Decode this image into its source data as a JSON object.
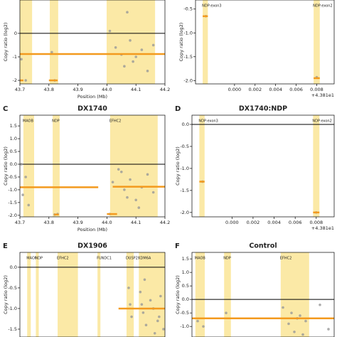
{
  "chart_data": [
    {
      "type": "scatter",
      "xlabel": "Position (Mb)",
      "ylabel": "Copy ratio (log2)",
      "xlim": [
        43.7,
        44.2
      ],
      "ylim": [
        -2.15,
        1.42
      ],
      "xticks": [
        43.7,
        43.8,
        43.9,
        {
          "value": 44.0,
          "label": "44.0"
        },
        44.1,
        44.2
      ],
      "yticks": [
        0,
        -1,
        -2
      ],
      "bands": [
        {
          "start": 43.7,
          "end": 43.742
        },
        {
          "start": 43.803,
          "end": 43.832
        },
        {
          "start": 43.999,
          "end": 44.166
        }
      ],
      "band_color": "#fbe9a6",
      "segments": [
        {
          "x": [
            43.7,
            44.2
          ],
          "y": -0.88
        },
        {
          "x": [
            43.7,
            43.712
          ],
          "y": -2.0
        },
        {
          "x": [
            43.8,
            43.83
          ],
          "y": -2.0
        }
      ],
      "segment_color": "#f39a1e",
      "point_color": "#999999",
      "points": {
        "x": [
          43.705,
          43.72,
          43.81,
          43.82,
          44.01,
          44.03,
          44.05,
          44.06,
          44.08,
          44.1,
          44.12,
          44.14,
          44.16,
          44.07,
          44.09
        ],
        "y": [
          -1.1,
          -2.0,
          -0.8,
          -2.0,
          0.1,
          -0.6,
          -0.9,
          -1.4,
          -0.3,
          -1.0,
          -0.7,
          -1.6,
          -0.5,
          0.9,
          -1.2
        ]
      }
    },
    {
      "type": "scatter",
      "ylabel": "Copy ratio (log2)",
      "x_offset_label": "+4.381e1",
      "xlim": [
        -0.0038,
        0.0097
      ],
      "ylim": [
        -2.07,
        -0.31
      ],
      "xticks": [
        {
          "value": 0,
          "label": "0.000"
        },
        0.002,
        0.004,
        0.006,
        0.008
      ],
      "yticks": [
        -0.5,
        {
          "value": -1,
          "label": "-1.0"
        },
        -1.5,
        {
          "value": -2,
          "label": "-2.0"
        }
      ],
      "bands": [
        {
          "label": "NDP:exon3",
          "start": -0.0031,
          "end": -0.0026
        },
        {
          "label": "NDP:exon2",
          "start": 0.0077,
          "end": 0.0083
        }
      ],
      "band_color": "#fbe9a6",
      "segments": [
        {
          "x": [
            -0.0031,
            -0.0026
          ],
          "y": -0.65
        },
        {
          "x": [
            0.0077,
            0.0083
          ],
          "y": -1.95
        }
      ],
      "segment_color": "#f39a1e",
      "point_color": "#999999",
      "points": {
        "x": [
          -0.0028,
          0.008
        ],
        "y": [
          -0.65,
          -1.93
        ]
      }
    },
    {
      "type": "scatter",
      "panel": "C",
      "title": "DX1740",
      "xlabel": "Position (Mb)",
      "ylabel": "Copy ratio (log2)",
      "xlim": [
        43.7,
        44.2
      ],
      "ylim": [
        -2.06,
        1.92
      ],
      "xticks": [
        43.7,
        43.8,
        43.9,
        {
          "value": 44.0,
          "label": "44.0"
        },
        44.1,
        44.2
      ],
      "yticks": [
        {
          "value": -2,
          "label": "-2.0"
        },
        -1.5,
        {
          "value": -1,
          "label": "-1.0"
        },
        -0.5,
        {
          "value": 0,
          "label": "0.0"
        },
        0.5,
        {
          "value": 1,
          "label": "1.0"
        },
        1.5
      ],
      "bands": [
        {
          "label": "MAOB",
          "start": 43.712,
          "end": 43.749
        },
        {
          "label": "NDP",
          "start": 43.813,
          "end": 43.837
        },
        {
          "label": "EFHC2",
          "start": 44.011,
          "end": 44.175
        }
      ],
      "band_color": "#fbe9a6",
      "segments": [
        {
          "x": [
            43.7,
            43.97
          ],
          "y": -0.9
        },
        {
          "x": [
            44.02,
            44.2
          ],
          "y": -0.88
        },
        {
          "x": [
            43.818,
            43.834
          ],
          "y": -1.97
        },
        {
          "x": [
            44.0,
            44.035
          ],
          "y": -1.95
        }
      ],
      "segment_color": "#f39a1e",
      "point_color": "#999999",
      "points": {
        "x": [
          43.705,
          43.71,
          43.72,
          43.73,
          43.82,
          43.83,
          44.01,
          44.02,
          44.04,
          44.06,
          44.08,
          44.1,
          44.12,
          44.14,
          44.16,
          44.05,
          44.11,
          44.07
        ],
        "y": [
          0.0,
          -1.2,
          -0.5,
          -1.6,
          -1.97,
          -1.95,
          -1.95,
          -0.7,
          -0.2,
          -1.0,
          -0.6,
          -1.4,
          -0.9,
          -0.4,
          -1.1,
          -0.3,
          -1.7,
          -1.3
        ]
      }
    },
    {
      "type": "scatter",
      "panel": "D",
      "title": "DX1740:NDP",
      "ylabel": "Copy ratio (log2)",
      "x_offset_label": "+4.381e1",
      "xlim": [
        -0.0038,
        0.0097
      ],
      "ylim": [
        -2.1,
        0.21
      ],
      "xticks": [
        {
          "value": 0,
          "label": "0.000"
        },
        0.002,
        0.004,
        0.006,
        0.008
      ],
      "yticks": [
        {
          "value": 0,
          "label": "0.0"
        },
        -0.5,
        {
          "value": -1,
          "label": "-1.0"
        },
        -1.5,
        {
          "value": -2,
          "label": "-2.0"
        }
      ],
      "bands": [
        {
          "label": "NDP:exon3",
          "start": -0.0031,
          "end": -0.0026
        },
        {
          "label": "NDP:exon2",
          "start": 0.0077,
          "end": 0.0083
        }
      ],
      "band_color": "#fbe9a6",
      "segments": [
        {
          "x": [
            -0.0031,
            -0.0026
          ],
          "y": -1.3
        },
        {
          "x": [
            0.0077,
            0.0083
          ],
          "y": -2.0
        }
      ],
      "segment_color": "#f39a1e",
      "point_color": "#999999",
      "points": {
        "x": [
          -0.0028,
          0.008
        ],
        "y": [
          -1.3,
          -2.0
        ]
      }
    },
    {
      "type": "scatter",
      "panel": "E",
      "title": "DX1906",
      "ylabel": "Copy ratio (log2)",
      "xlim": [
        43.6,
        44.6
      ],
      "ylim": [
        -1.69,
        0.36
      ],
      "yticks": [
        {
          "value": 0,
          "label": "0.0"
        },
        -0.5,
        {
          "value": -1,
          "label": "-1.0"
        },
        -1.5
      ],
      "bands": [
        {
          "label": "MAOB",
          "start": 43.65,
          "end": 43.675
        },
        {
          "label": "NDP",
          "start": 43.71,
          "end": 43.73
        },
        {
          "label": "EFHC2",
          "start": 43.86,
          "end": 44.0
        },
        {
          "label": "FUNDC1",
          "start": 44.135,
          "end": 44.155
        },
        {
          "label": "DUSP21",
          "start": 44.335,
          "end": 44.385
        },
        {
          "label": "KDM6A",
          "start": 44.42,
          "end": 44.6
        }
      ],
      "band_color": "#fbe9a6",
      "segments": [
        {
          "x": [
            44.28,
            44.6
          ],
          "y": -1.0
        }
      ],
      "segment_color": "#f39a1e",
      "point_color": "#999999",
      "points": {
        "x": [
          44.35,
          44.37,
          44.43,
          44.45,
          44.47,
          44.5,
          44.52,
          44.55,
          44.57,
          44.59,
          44.46,
          44.53,
          44.44,
          44.56,
          44.36
        ],
        "y": [
          -0.5,
          -1.2,
          -0.6,
          -1.1,
          -1.4,
          -0.8,
          -1.0,
          -1.3,
          -0.7,
          -1.5,
          -0.3,
          -1.6,
          -0.9,
          -1.2,
          -0.9
        ]
      }
    },
    {
      "type": "scatter",
      "panel": "F",
      "title": "Control",
      "ylabel": "Copy ratio (log2)",
      "xlim": [
        43.7,
        44.2
      ],
      "ylim": [
        -1.39,
        1.74
      ],
      "yticks": [
        1.5,
        {
          "value": 1,
          "label": "1.0"
        },
        0.5,
        {
          "value": 0,
          "label": "0.0"
        },
        -0.5,
        {
          "value": -1,
          "label": "-1.0"
        }
      ],
      "bands": [
        {
          "label": "MAOB",
          "start": 43.712,
          "end": 43.745
        },
        {
          "label": "NDP",
          "start": 43.813,
          "end": 43.837
        },
        {
          "label": "EFHC2",
          "start": 44.012,
          "end": 44.112
        }
      ],
      "band_color": "#fbe9a6",
      "segments": [
        {
          "x": [
            43.7,
            44.2
          ],
          "y": -0.7
        }
      ],
      "segment_color": "#f39a1e",
      "point_color": "#999999",
      "points": {
        "x": [
          43.72,
          43.74,
          43.82,
          44.02,
          44.04,
          44.06,
          44.08,
          44.1,
          44.15,
          44.18,
          44.05,
          44.09,
          44.07
        ],
        "y": [
          -0.8,
          -1.0,
          -0.5,
          -0.3,
          -0.9,
          -1.2,
          -0.6,
          -0.8,
          -0.2,
          -1.1,
          -0.5,
          -1.3,
          -0.7
        ]
      }
    }
  ]
}
